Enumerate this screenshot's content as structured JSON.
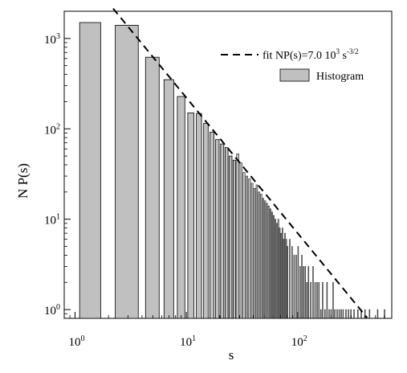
{
  "chart_data": {
    "type": "bar",
    "title": "",
    "xlabel": "s",
    "ylabel": "N P(s)",
    "x_scale": "log",
    "y_scale": "log",
    "xlim": [
      0.8,
      700
    ],
    "ylim": [
      0.8,
      2000
    ],
    "x_ticks": [
      {
        "value": 1,
        "base": "10",
        "exp": "0"
      },
      {
        "value": 10,
        "base": "10",
        "exp": "1"
      },
      {
        "value": 100,
        "base": "10",
        "exp": "2"
      }
    ],
    "y_ticks": [
      {
        "value": 1,
        "base": "10",
        "exp": "0"
      },
      {
        "value": 10,
        "base": "10",
        "exp": "1"
      },
      {
        "value": 100,
        "base": "10",
        "exp": "2"
      },
      {
        "value": 1000,
        "base": "10",
        "exp": "3"
      }
    ],
    "legend": {
      "position": "top-right",
      "fit_prefix": "fit NP(s)=7.0 10",
      "fit_sup1": "3",
      "fit_mid": " s",
      "fit_sup2": "-3/2",
      "histogram_label": "Histogram"
    },
    "fit": {
      "coefficient": 7000,
      "exponent": -1.5,
      "s_range": [
        2.2,
        420
      ]
    },
    "series": [
      {
        "name": "Histogram",
        "color": "#c0c0c0",
        "bins": [
          {
            "s": 1,
            "count": 1500
          },
          {
            "s": 3,
            "count": 1400
          },
          {
            "s": 5,
            "count": 620
          },
          {
            "s": 7,
            "count": 350
          },
          {
            "s": 9,
            "count": 228
          },
          {
            "s": 11,
            "count": 150
          },
          {
            "s": 13,
            "count": 148
          },
          {
            "s": 15,
            "count": 115
          },
          {
            "s": 17,
            "count": 92
          },
          {
            "s": 19,
            "count": 76
          },
          {
            "s": 21,
            "count": 68
          },
          {
            "s": 23,
            "count": 62
          },
          {
            "s": 25,
            "count": 50
          },
          {
            "s": 27,
            "count": 45
          },
          {
            "s": 29,
            "count": 53
          },
          {
            "s": 31,
            "count": 42
          },
          {
            "s": 33,
            "count": 33
          },
          {
            "s": 35,
            "count": 30
          },
          {
            "s": 37,
            "count": 28
          },
          {
            "s": 39,
            "count": 25
          },
          {
            "s": 41,
            "count": 22
          },
          {
            "s": 43,
            "count": 24
          },
          {
            "s": 45,
            "count": 20
          },
          {
            "s": 47,
            "count": 19
          },
          {
            "s": 49,
            "count": 17
          },
          {
            "s": 51,
            "count": 16
          },
          {
            "s": 53,
            "count": 15
          },
          {
            "s": 55,
            "count": 14
          },
          {
            "s": 57,
            "count": 13
          },
          {
            "s": 59,
            "count": 12
          },
          {
            "s": 61,
            "count": 11
          },
          {
            "s": 63,
            "count": 10
          },
          {
            "s": 65,
            "count": 9
          },
          {
            "s": 67,
            "count": 10
          },
          {
            "s": 69,
            "count": 8
          },
          {
            "s": 71,
            "count": 7
          },
          {
            "s": 73,
            "count": 8
          },
          {
            "s": 75,
            "count": 6
          },
          {
            "s": 77,
            "count": 7
          },
          {
            "s": 79,
            "count": 6
          },
          {
            "s": 81,
            "count": 5
          },
          {
            "s": 85,
            "count": 6
          },
          {
            "s": 89,
            "count": 5
          },
          {
            "s": 93,
            "count": 4
          },
          {
            "s": 97,
            "count": 4
          },
          {
            "s": 101,
            "count": 5
          },
          {
            "s": 105,
            "count": 3
          },
          {
            "s": 109,
            "count": 4
          },
          {
            "s": 113,
            "count": 3
          },
          {
            "s": 117,
            "count": 3
          },
          {
            "s": 121,
            "count": 2
          },
          {
            "s": 125,
            "count": 3
          },
          {
            "s": 131,
            "count": 2
          },
          {
            "s": 137,
            "count": 3
          },
          {
            "s": 143,
            "count": 2
          },
          {
            "s": 149,
            "count": 2
          },
          {
            "s": 155,
            "count": 2
          },
          {
            "s": 161,
            "count": 1
          },
          {
            "s": 167,
            "count": 2
          },
          {
            "s": 175,
            "count": 1
          },
          {
            "s": 183,
            "count": 2
          },
          {
            "s": 191,
            "count": 1
          },
          {
            "s": 199,
            "count": 1
          },
          {
            "s": 207,
            "count": 2
          },
          {
            "s": 215,
            "count": 1
          },
          {
            "s": 225,
            "count": 1
          },
          {
            "s": 235,
            "count": 1
          },
          {
            "s": 245,
            "count": 1
          },
          {
            "s": 255,
            "count": 1
          },
          {
            "s": 270,
            "count": 1
          },
          {
            "s": 285,
            "count": 1
          },
          {
            "s": 300,
            "count": 1
          },
          {
            "s": 320,
            "count": 1
          },
          {
            "s": 345,
            "count": 1
          },
          {
            "s": 370,
            "count": 1
          },
          {
            "s": 400,
            "count": 1
          },
          {
            "s": 440,
            "count": 1
          },
          {
            "s": 520,
            "count": 1
          },
          {
            "s": 600,
            "count": 1
          }
        ]
      }
    ]
  }
}
